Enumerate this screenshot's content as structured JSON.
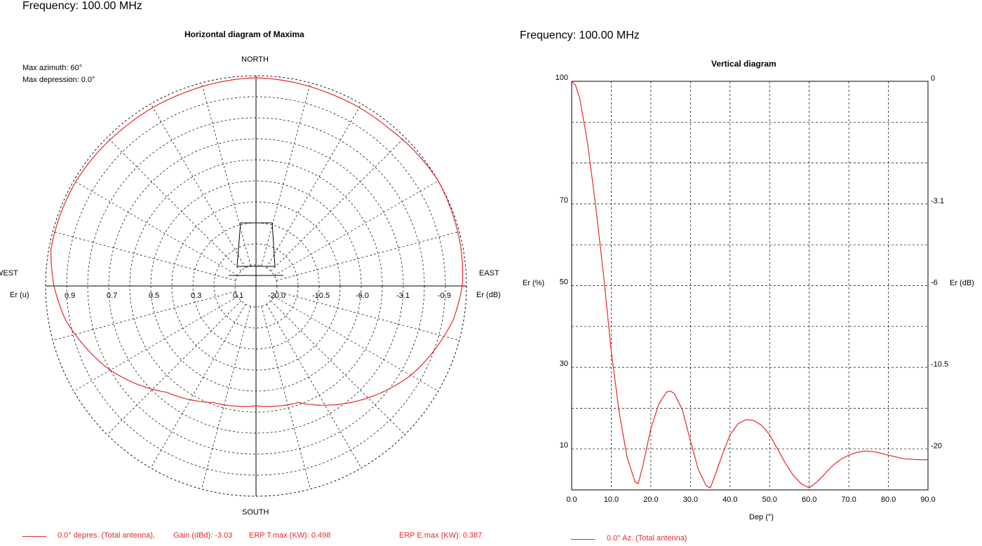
{
  "left": {
    "frequency": "Frequency: 100.00 MHz",
    "title": "Horizontal diagram of Maxima",
    "info_azimuth": "Max azimuth: 60°",
    "info_depression": "Max depression: 0.0°",
    "north": "NORTH",
    "south": "SOUTH",
    "west": "WEST",
    "east": "EAST",
    "er_u": "Er (u)",
    "er_db": "Er (dB)",
    "legend_series": "0.0° depres. (Total antenna),",
    "legend_gain": "Gain (dBd): -3.03",
    "legend_erp_t": "ERP T.max (KW): 0.498",
    "legend_erp_e": "ERP E.max (KW): 0.387"
  },
  "right": {
    "frequency": "Frequency: 100.00 MHz",
    "title": "Vertical diagram",
    "ylabel_left": "Er  (%)",
    "ylabel_right": "Er  (dB)",
    "xlabel": "Dep (°)",
    "legend_series": "0.0° Az. (Total antenna)"
  },
  "colors": {
    "series": "#e8262a",
    "grid": "#000000",
    "axis": "#000000"
  },
  "chart_data": [
    {
      "type": "polar",
      "title": "Horizontal diagram of Maxima",
      "left_tick_labels": [
        "0.9",
        "0.7",
        "0.5",
        "0.3",
        "0.1"
      ],
      "right_tick_labels": [
        "-20.0",
        "-10.5",
        "-6.0",
        "-3.1",
        "-0.9"
      ],
      "rings": 10,
      "radial_spokes_deg": 15,
      "grid": true,
      "series": [
        {
          "name": "0.0° depres. (Total antenna)",
          "points_azimuth_value": [
            [
              0,
              0.99
            ],
            [
              20,
              0.98
            ],
            [
              40,
              0.98
            ],
            [
              60,
              1.0
            ],
            [
              80,
              0.99
            ],
            [
              90,
              0.98
            ],
            [
              100,
              0.95
            ],
            [
              120,
              0.85
            ],
            [
              140,
              0.72
            ],
            [
              160,
              0.59
            ],
            [
              180,
              0.57
            ],
            [
              200,
              0.59
            ],
            [
              220,
              0.66
            ],
            [
              240,
              0.8
            ],
            [
              260,
              0.92
            ],
            [
              270,
              0.96
            ],
            [
              280,
              0.99
            ],
            [
              300,
              0.99
            ],
            [
              320,
              0.98
            ],
            [
              340,
              0.98
            ],
            [
              360,
              0.99
            ]
          ]
        }
      ]
    },
    {
      "type": "line",
      "title": "Vertical diagram",
      "xlabel": "Dep (°)",
      "ylabel": "Er  (%)",
      "ylabel_right": "Er  (dB)",
      "xlim": [
        0,
        90
      ],
      "ylim": [
        0,
        100
      ],
      "x_ticks": [
        "0.0",
        "10.0",
        "20.0",
        "30.0",
        "40.0",
        "50.0",
        "60.0",
        "70.0",
        "80.0",
        "90.0"
      ],
      "y_ticks_left": [
        [
          "10",
          10
        ],
        [
          "30",
          30
        ],
        [
          "50",
          50
        ],
        [
          "70",
          70
        ],
        [
          "100",
          100
        ]
      ],
      "y_ticks_right": [
        [
          "0",
          100
        ],
        [
          "-3.1",
          70
        ],
        [
          "-6",
          50
        ],
        [
          "-10.5",
          30
        ],
        [
          "-20",
          10
        ]
      ],
      "grid": true,
      "series": [
        {
          "name": "0.0° Az. (Total antenna)",
          "x": [
            0,
            1,
            2,
            4,
            6,
            8,
            10,
            12,
            14,
            16,
            16.8,
            18,
            20,
            22,
            24,
            25,
            26,
            28,
            30,
            32,
            34,
            35,
            36,
            38,
            40,
            42,
            44,
            46,
            48,
            50,
            52,
            54,
            56,
            58,
            60,
            62,
            64,
            66,
            68,
            70,
            72,
            74,
            76,
            78,
            80,
            84,
            88,
            90
          ],
          "y": [
            100,
            99,
            96,
            85,
            70,
            53,
            34,
            19,
            8,
            2,
            1.5,
            6,
            15,
            21,
            24,
            24.2,
            23.5,
            19.5,
            12,
            5,
            1,
            0.5,
            3,
            8.5,
            13.5,
            16.2,
            17.2,
            17,
            15.8,
            13.5,
            10,
            6.5,
            3.5,
            1.5,
            0.5,
            2,
            4,
            6,
            7.5,
            8.5,
            9.2,
            9.5,
            9.4,
            9,
            8.5,
            7.6,
            7.4,
            7.4
          ]
        }
      ]
    }
  ]
}
